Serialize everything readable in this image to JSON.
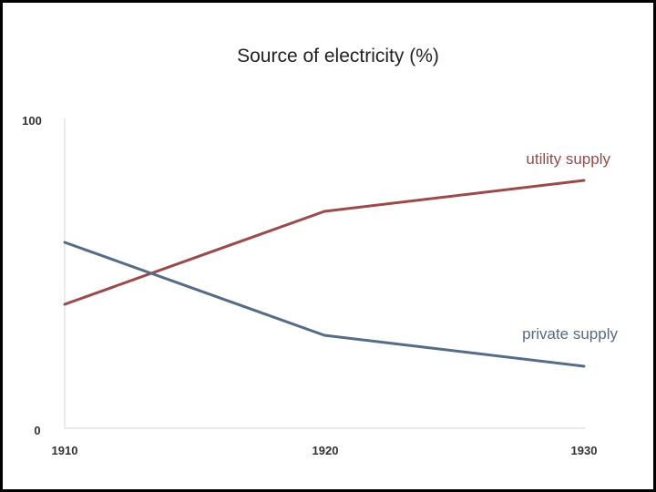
{
  "chart_data": {
    "type": "line",
    "title": "Source of electricity (%)",
    "xlabel": "",
    "ylabel": "",
    "x": [
      1910,
      1920,
      1930
    ],
    "x_tick_labels": [
      "1910",
      "1920",
      "1930"
    ],
    "y_tick_labels": [
      "0",
      "100"
    ],
    "ylim": [
      0,
      100
    ],
    "grid": false,
    "series": [
      {
        "name": "utility supply",
        "values": [
          40,
          70,
          80
        ],
        "color": "#9a4a48"
      },
      {
        "name": "private supply",
        "values": [
          60,
          30,
          20
        ],
        "color": "#566b86"
      }
    ]
  }
}
